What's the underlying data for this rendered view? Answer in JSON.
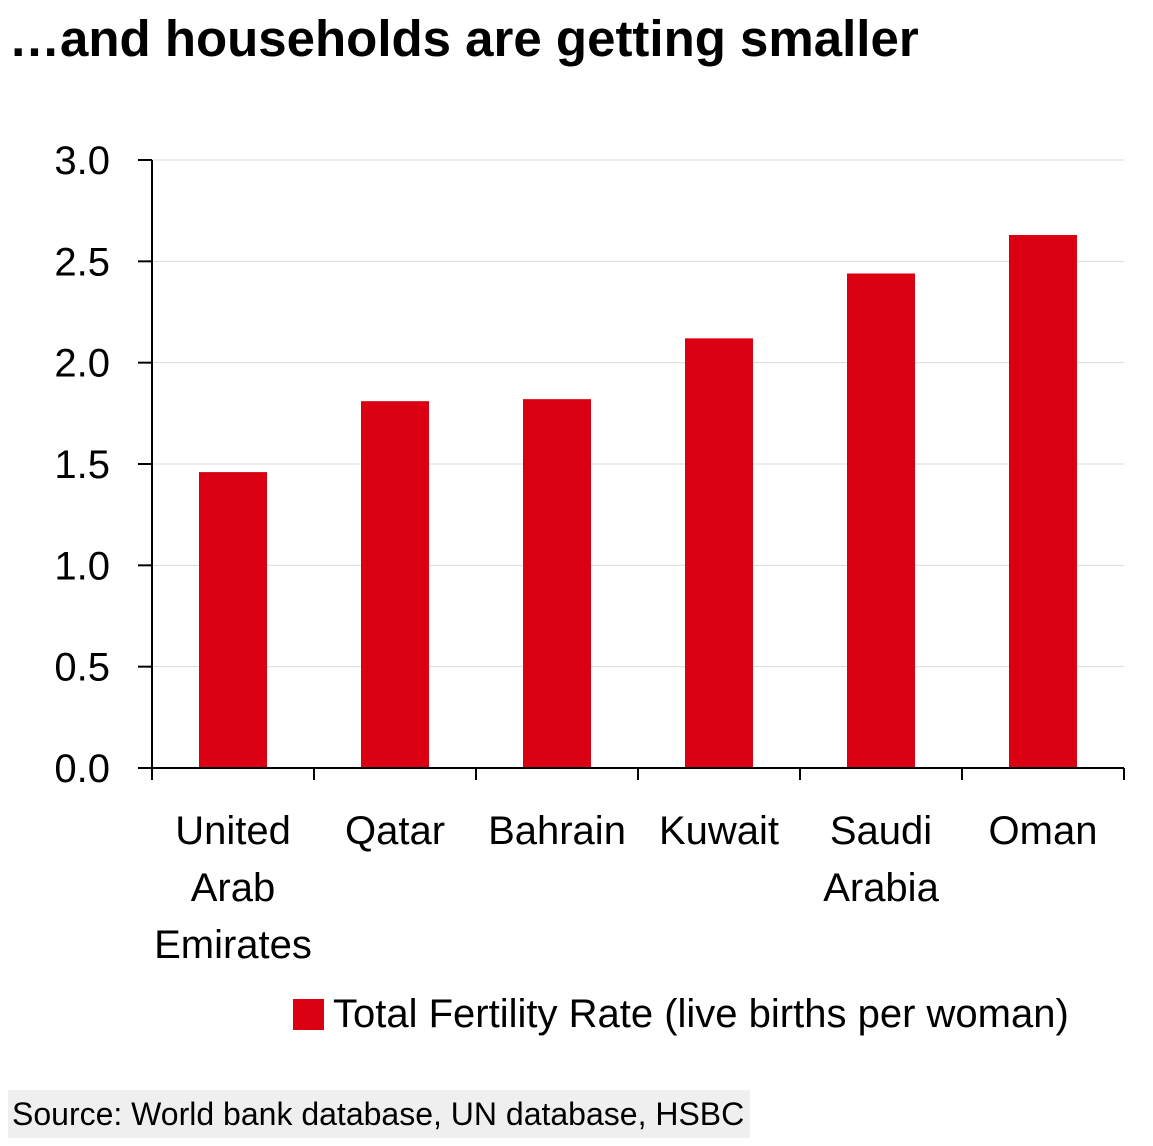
{
  "title": "…and households are getting smaller",
  "chart_data": {
    "type": "bar",
    "title": "…and households are getting smaller",
    "categories": [
      [
        "United",
        "Arab",
        "Emirates"
      ],
      [
        "Qatar"
      ],
      [
        "Bahrain"
      ],
      [
        "Kuwait"
      ],
      [
        "Saudi",
        "Arabia"
      ],
      [
        "Oman"
      ]
    ],
    "series": [
      {
        "name": "Total Fertility Rate (live births per woman)",
        "values": [
          1.46,
          1.81,
          1.82,
          2.12,
          2.44,
          2.63
        ],
        "color": "#DB0011"
      }
    ],
    "ylim": [
      0,
      3.0
    ],
    "yticks": [
      "0.0",
      "0.5",
      "1.0",
      "1.5",
      "2.0",
      "2.5",
      "3.0"
    ],
    "xlabel": "",
    "ylabel": "",
    "grid": true,
    "legend_position": "bottom"
  },
  "legend": {
    "label": "Total Fertility Rate (live births per woman)",
    "color": "#DB0011"
  },
  "source": "Source: World bank database, UN database, HSBC"
}
